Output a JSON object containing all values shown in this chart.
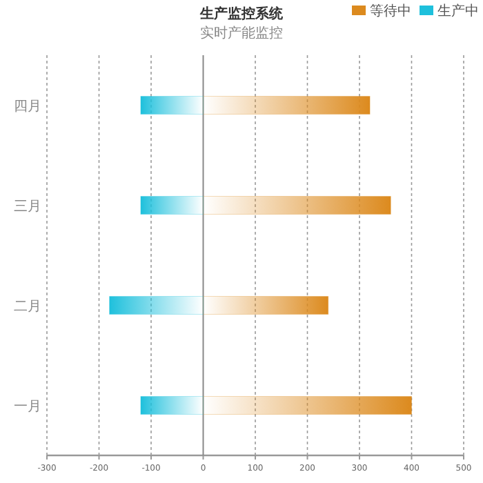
{
  "chart_data": {
    "type": "bar",
    "orientation": "horizontal",
    "title": "生产监控系统",
    "subtitle": "实时产能监控",
    "categories": [
      "四月",
      "三月",
      "二月",
      "一月"
    ],
    "series": [
      {
        "name": "等待中",
        "color": "#dc8a1e",
        "values": [
          320,
          360,
          240,
          400
        ]
      },
      {
        "name": "生产中",
        "color": "#1ec0dc",
        "values": [
          -120,
          -120,
          -180,
          -120
        ]
      }
    ],
    "stacked": true,
    "xlim": [
      -300,
      500
    ],
    "xticks": [
      -300,
      -200,
      -100,
      0,
      100,
      200,
      300,
      400,
      500
    ],
    "grid": "x",
    "legend": "top right"
  }
}
